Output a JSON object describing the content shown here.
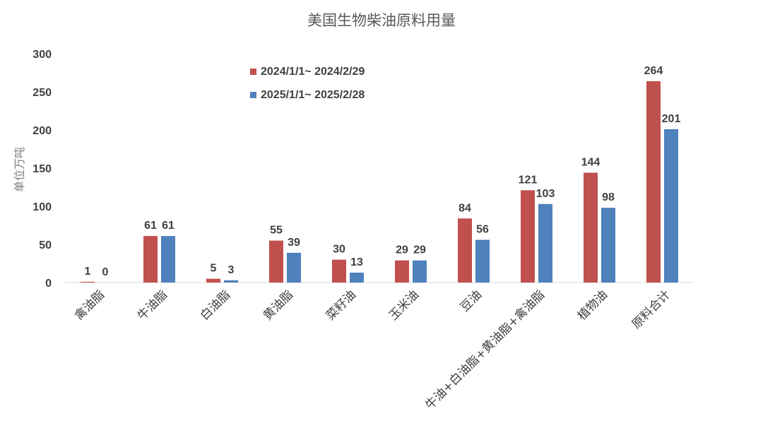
{
  "chart_data": {
    "type": "bar",
    "title": "美国生物柴油原料用量",
    "ylabel": "单位万吨",
    "xlabel": "",
    "ylim": [
      0,
      300
    ],
    "yticks": [
      0,
      50,
      100,
      150,
      200,
      250,
      300
    ],
    "grid": false,
    "legend_position": "top-center",
    "categories": [
      "禽油脂",
      "牛油脂",
      "白油脂",
      "黄油脂",
      "菜籽油",
      "玉米油",
      "豆油",
      "牛油+白油脂+黄油脂+禽油脂",
      "植物油",
      "原料合计"
    ],
    "series": [
      {
        "name": "2024/1/1~ 2024/2/29",
        "color": "#C0504D",
        "values": [
          1,
          61,
          5,
          55,
          30,
          29,
          84,
          121,
          144,
          264
        ]
      },
      {
        "name": "2025/1/1~ 2025/2/28",
        "color": "#4F81BD",
        "values": [
          0,
          61,
          3,
          39,
          13,
          29,
          56,
          103,
          98,
          201
        ]
      }
    ]
  }
}
